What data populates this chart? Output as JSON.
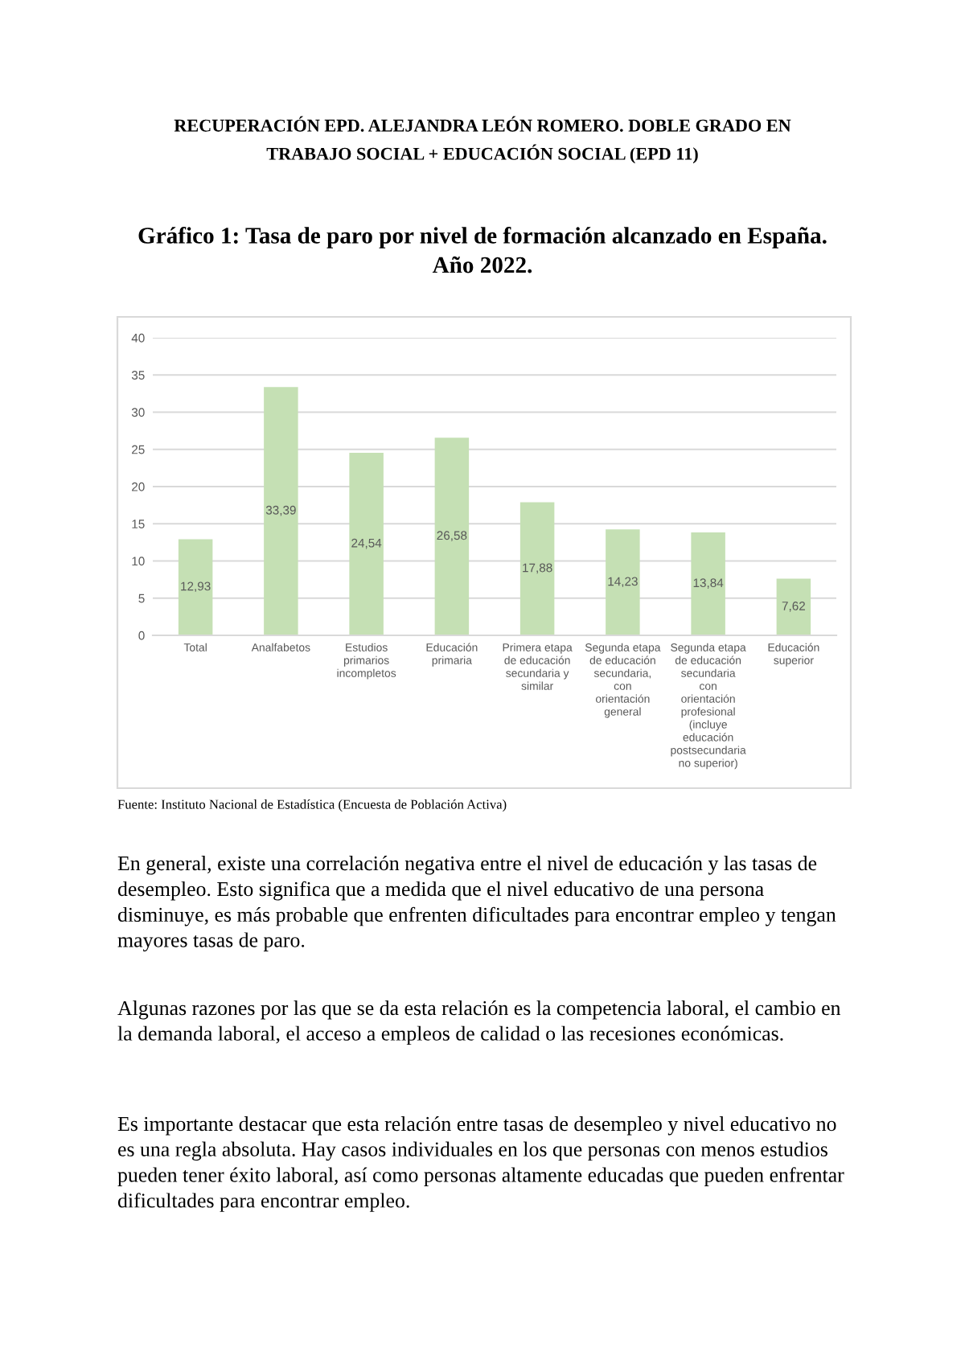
{
  "chart_data": {
    "type": "bar",
    "title": "Gráfico 1: Tasa de paro por nivel de formación alcanzado en España. Año 2022.",
    "categories": [
      "Total",
      "Analfabetos",
      "Estudios primarios incompletos",
      "Educación primaria",
      "Primera etapa de educación secundaria y similar",
      "Segunda etapa de educación secundaria, con orientación general",
      "Segunda etapa de educación secundaria con orientación profesional (incluye educación postsecundaria no superior)",
      "Educación superior"
    ],
    "values": [
      12.93,
      33.39,
      24.54,
      26.58,
      17.88,
      14.23,
      13.84,
      7.62
    ],
    "value_labels": [
      "12,93",
      "33,39",
      "24,54",
      "26,58",
      "17,88",
      "14,23",
      "13,84",
      "7,62"
    ],
    "color": "#c5e0b4",
    "ylim": [
      0,
      40
    ],
    "yticks": [
      0,
      5,
      10,
      15,
      20,
      25,
      30,
      35,
      40
    ],
    "grid": "y",
    "annotations": [
      "RECUPERACIÓN EPD. ALEJANDRA LEÓN ROMERO. DOBLE GRADO EN TRABAJO SOCIAL + EDUCACIÓN SOCIAL (EPD 11)",
      "Fuente: Instituto Nacional de Estadística (Encuesta de Población Activa)",
      "En general, existe una correlación negativa entre el nivel de educación y las tasas de desempleo. Esto significa que a medida que el nivel educativo de una persona disminuye, es más probable que enfrenten dificultades para encontrar empleo y tengan mayores tasas de paro.",
      "Algunas razones por las que se da esta relación es la competencia laboral, el cambio en la demanda laboral, el acceso a empleos de calidad o las recesiones económicas.",
      "Es importante destacar que esta relación entre tasas de desempleo y nivel educativo no es una regla absoluta. Hay casos individuales en los que personas con menos estudios pueden tener éxito laboral, así como personas altamente educadas que pueden enfrentar dificultades para encontrar empleo."
    ]
  }
}
